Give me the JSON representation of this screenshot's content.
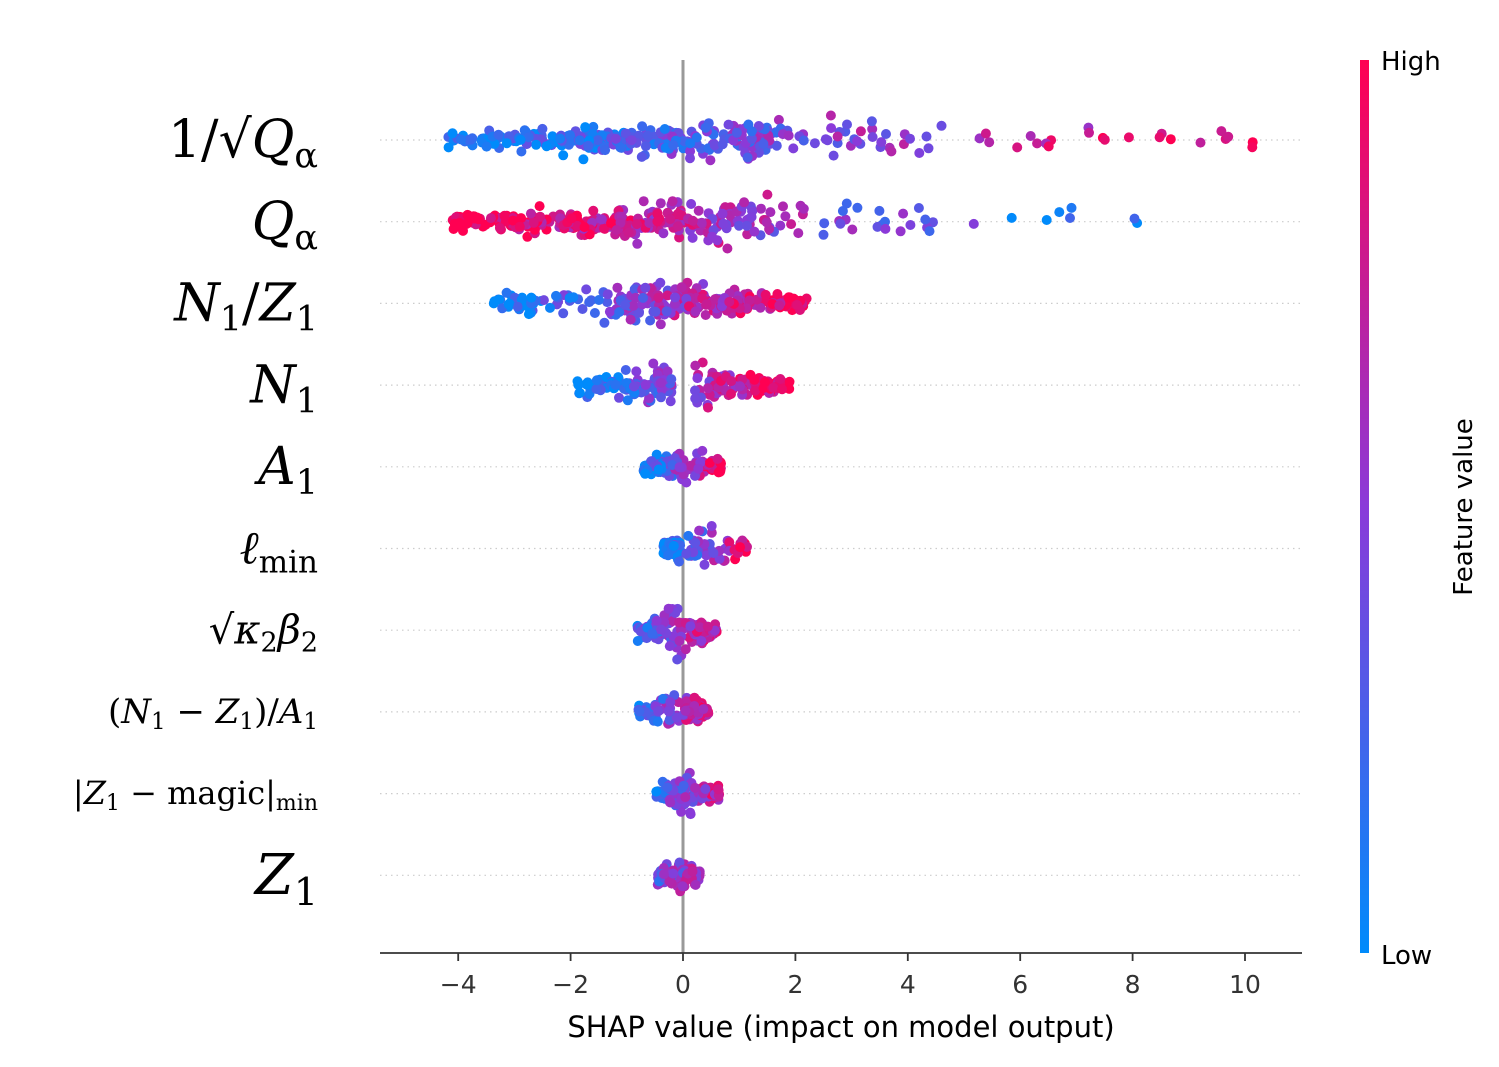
{
  "chart_data": {
    "type": "scatter",
    "subtype": "shap-beeswarm",
    "title": "",
    "xlabel": "SHAP value (impact on model output)",
    "xlim": [
      -5.4,
      11.0
    ],
    "xticks": [
      -4,
      -2,
      0,
      2,
      4,
      6,
      8,
      10
    ],
    "xtick_labels": [
      "−4",
      "−2",
      "0",
      "2",
      "4",
      "6",
      "8",
      "10"
    ],
    "colorbar": {
      "label": "Feature value",
      "high_label": "High",
      "low_label": "Low",
      "low_color": "#008bfb",
      "high_color": "#ff0052"
    },
    "colors": {
      "zero_line": "#999999",
      "grid": "#cccccc",
      "axis": "#333333"
    },
    "features": [
      {
        "name": "1/√Qα",
        "label_parts": [
          [
            "1/√",
            "rm"
          ],
          [
            "Q",
            "it"
          ],
          [
            "α",
            "sub"
          ]
        ],
        "min": -4.6,
        "max": 10.2,
        "spread": 0.22,
        "n": 360,
        "corr": 1,
        "clusters": [
          [
            -4.2,
            -2.6,
            0.18
          ],
          [
            -2.6,
            -0.2,
            0.34
          ],
          [
            -0.2,
            1.6,
            0.3
          ],
          [
            1.6,
            4.6,
            0.13
          ],
          [
            5.2,
            10.2,
            0.05
          ]
        ]
      },
      {
        "name": "Qα",
        "label_parts": [
          [
            "Q",
            "it"
          ],
          [
            "α",
            "sub"
          ]
        ],
        "min": -4.1,
        "max": 8.5,
        "spread": 0.26,
        "n": 330,
        "corr": -1,
        "clusters": [
          [
            -4.1,
            -2.2,
            0.25
          ],
          [
            -2.2,
            -0.2,
            0.35
          ],
          [
            -0.2,
            1.6,
            0.28
          ],
          [
            1.6,
            4.5,
            0.08
          ],
          [
            4.5,
            8.5,
            0.04
          ]
        ]
      },
      {
        "name": "N1/Z1",
        "label_parts": [
          [
            "N",
            "it"
          ],
          [
            "1",
            "sub"
          ],
          [
            "/",
            "rm"
          ],
          [
            "Z",
            "it"
          ],
          [
            "1",
            "sub"
          ]
        ],
        "min": -3.5,
        "max": 2.2,
        "spread": 0.24,
        "n": 290,
        "corr": 1,
        "clusters": [
          [
            -3.5,
            -1.2,
            0.22
          ],
          [
            -1.2,
            0.0,
            0.3
          ],
          [
            0.0,
            1.2,
            0.33
          ],
          [
            1.2,
            2.2,
            0.15
          ]
        ]
      },
      {
        "name": "N1",
        "label_parts": [
          [
            "N",
            "it"
          ],
          [
            "1",
            "sub"
          ]
        ],
        "min": -1.9,
        "max": 1.9,
        "spread": 0.26,
        "n": 220,
        "corr": 1,
        "clusters": [
          [
            -1.9,
            -0.9,
            0.18
          ],
          [
            -0.9,
            -0.2,
            0.37
          ],
          [
            0.2,
            1.0,
            0.2
          ],
          [
            1.0,
            1.9,
            0.25
          ]
        ]
      },
      {
        "name": "A1",
        "label_parts": [
          [
            "A",
            "it"
          ],
          [
            "1",
            "sub"
          ]
        ],
        "min": -0.7,
        "max": 0.7,
        "spread": 0.22,
        "n": 120,
        "corr": 1,
        "clusters": [
          [
            -0.7,
            0.05,
            0.6
          ],
          [
            0.05,
            0.7,
            0.4
          ]
        ]
      },
      {
        "name": "ℓmin",
        "label_parts": [
          [
            "ℓ",
            "it"
          ],
          [
            "min",
            "sub-rm"
          ]
        ],
        "min": -0.35,
        "max": 1.2,
        "spread": 0.2,
        "n": 140,
        "corr": 1,
        "clusters": [
          [
            -0.35,
            -0.05,
            0.6
          ],
          [
            0.05,
            1.2,
            0.4
          ]
        ]
      },
      {
        "name": "√(κ2β2)",
        "label_parts": [
          [
            "√",
            "rm"
          ],
          [
            "κ",
            "it"
          ],
          [
            "2",
            "sub"
          ],
          [
            "β",
            "it"
          ],
          [
            "2",
            "sub"
          ]
        ],
        "min": -0.85,
        "max": 0.6,
        "spread": 0.24,
        "n": 150,
        "corr": 0.6,
        "clusters": [
          [
            -0.85,
            0.6,
            1
          ]
        ]
      },
      {
        "name": "(N1 − Z1)/A1",
        "label_parts": [
          [
            "(",
            "rm"
          ],
          [
            "N",
            "it"
          ],
          [
            "1",
            "sub"
          ],
          [
            " − ",
            "rm"
          ],
          [
            "Z",
            "it"
          ],
          [
            "1",
            "sub"
          ],
          [
            ")/",
            "rm"
          ],
          [
            "A",
            "it"
          ],
          [
            "1",
            "sub"
          ]
        ],
        "min": -0.8,
        "max": 0.45,
        "spread": 0.22,
        "n": 100,
        "corr": 0.8,
        "clusters": [
          [
            -0.8,
            0.0,
            0.5
          ],
          [
            0.0,
            0.45,
            0.5
          ]
        ]
      },
      {
        "name": "|Z1 − magic|min",
        "label_parts": [
          [
            "|",
            "rm"
          ],
          [
            "Z",
            "it"
          ],
          [
            "1",
            "sub"
          ],
          [
            " − magic|",
            "rm"
          ],
          [
            "min",
            "sub-rm"
          ]
        ],
        "min": -0.5,
        "max": 0.65,
        "spread": 0.24,
        "n": 120,
        "corr": 0.6,
        "clusters": [
          [
            -0.5,
            0.65,
            1
          ]
        ]
      },
      {
        "name": "Z1",
        "label_parts": [
          [
            "Z",
            "it"
          ],
          [
            "1",
            "sub"
          ]
        ],
        "min": -0.45,
        "max": 0.3,
        "spread": 0.2,
        "n": 80,
        "corr": 0.3,
        "clusters": [
          [
            -0.45,
            0.3,
            1
          ]
        ]
      }
    ]
  }
}
